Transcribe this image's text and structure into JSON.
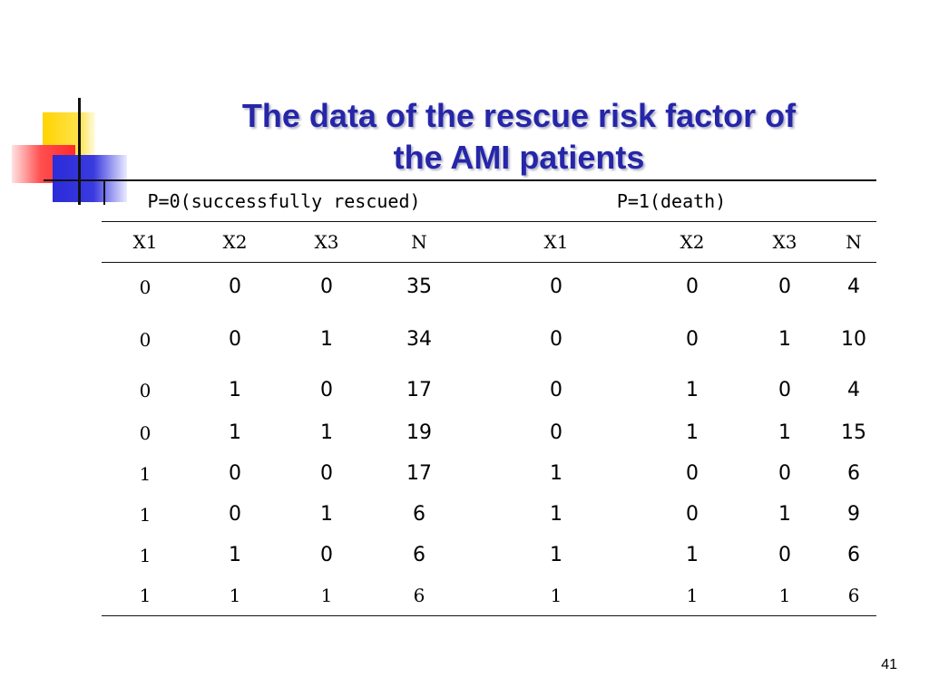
{
  "title_line1": "The data of the rescue risk factor of",
  "title_line2": "the AMI patients",
  "table": {
    "group_left": "P=0(successfully rescued)",
    "group_right": "P=1(death)",
    "columns": [
      "X1",
      "X2",
      "X3",
      "N",
      "X1",
      "X2",
      "X3",
      "N"
    ],
    "rows": [
      [
        "0",
        "0",
        "0",
        "35",
        "0",
        "0",
        "0",
        "4"
      ],
      [
        "0",
        "0",
        "1",
        "34",
        "0",
        "0",
        "1",
        "10"
      ],
      [
        "0",
        "1",
        "0",
        "17",
        "0",
        "1",
        "0",
        "4"
      ],
      [
        "0",
        "1",
        "1",
        "19",
        "0",
        "1",
        "1",
        "15"
      ],
      [
        "1",
        "0",
        "0",
        "17",
        "1",
        "0",
        "0",
        "6"
      ],
      [
        "1",
        "0",
        "1",
        "6",
        "1",
        "0",
        "1",
        "9"
      ],
      [
        "1",
        "1",
        "0",
        "6",
        "1",
        "1",
        "0",
        "6"
      ],
      [
        "1",
        "1",
        "1",
        "6",
        "1",
        "1",
        "1",
        "6"
      ]
    ]
  },
  "page_number": "41",
  "colors": {
    "title": "#2626a8",
    "deco_yellow": "#ffd400",
    "deco_red": "#ff3030",
    "deco_blue": "#2b2bd8"
  }
}
